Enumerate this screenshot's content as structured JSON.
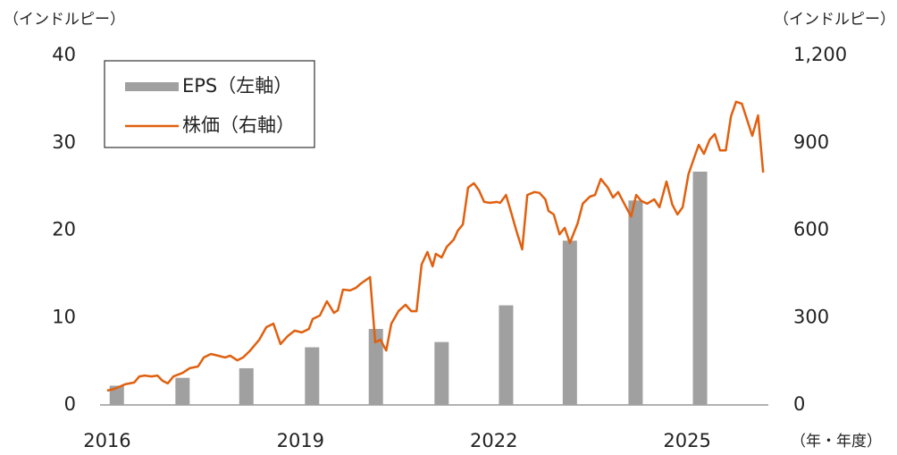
{
  "chart_data": {
    "type": "bar-line",
    "y_unit": "（インドルピー）",
    "y2_unit": "（インドルピー）",
    "x_unit": "（年・年度）",
    "xlim": [
      2015.89,
      2026.26
    ],
    "xticks": [
      2016,
      2019,
      2022,
      2025
    ],
    "ylim": [
      0,
      40
    ],
    "yticks": [
      0,
      10,
      20,
      30,
      40
    ],
    "y2lim": [
      0,
      1200
    ],
    "y2ticks": [
      0,
      300,
      600,
      900,
      {
        "value": 1200,
        "label": "1,200"
      }
    ],
    "legend": "upper left",
    "series": [
      {
        "name": "EPS（左軸）",
        "type": "bar",
        "axis": "y",
        "color": "#a0a0a0",
        "x": [
          2016.15,
          2017.17,
          2018.16,
          2019.18,
          2020.17,
          2021.19,
          2022.19,
          2023.18,
          2024.2,
          2025.2
        ],
        "values": [
          2.2,
          3.1,
          4.2,
          6.6,
          8.7,
          7.2,
          11.4,
          18.8,
          23.4,
          26.7
        ]
      },
      {
        "name": "株価（右軸）",
        "type": "line",
        "axis": "y2",
        "color": "#e0600f",
        "x": [
          2016,
          2016.11,
          2016.28,
          2016.42,
          2016.5,
          2016.58,
          2016.69,
          2016.78,
          2016.86,
          2016.94,
          2017.03,
          2017.17,
          2017.28,
          2017.41,
          2017.5,
          2017.61,
          2017.72,
          2017.83,
          2017.91,
          2018.02,
          2018.11,
          2018.22,
          2018.36,
          2018.47,
          2018.58,
          2018.69,
          2018.8,
          2018.91,
          2019.02,
          2019.13,
          2019.19,
          2019.3,
          2019.41,
          2019.52,
          2019.58,
          2019.66,
          2019.77,
          2019.86,
          2019.94,
          2020.08,
          2020.16,
          2020.24,
          2020.33,
          2020.41,
          2020.52,
          2020.63,
          2020.72,
          2020.8,
          2020.88,
          2020.97,
          2021.05,
          2021.1,
          2021.19,
          2021.27,
          2021.38,
          2021.44,
          2021.52,
          2021.6,
          2021.69,
          2021.77,
          2021.85,
          2021.94,
          2022.05,
          2022.1,
          2022.19,
          2022.27,
          2022.35,
          2022.44,
          2022.52,
          2022.63,
          2022.71,
          2022.8,
          2022.85,
          2022.93,
          2023.02,
          2023.1,
          2023.18,
          2023.3,
          2023.38,
          2023.49,
          2023.57,
          2023.66,
          2023.77,
          2023.85,
          2023.93,
          2024.04,
          2024.13,
          2024.21,
          2024.29,
          2024.38,
          2024.49,
          2024.57,
          2024.68,
          2024.77,
          2024.85,
          2024.93,
          2025.02,
          2025.13,
          2025.18,
          2025.26,
          2025.35,
          2025.43,
          2025.51,
          2025.6,
          2025.68,
          2025.76,
          2025.85,
          2025.93,
          2026.01,
          2026.1,
          2026.18
        ],
        "values": [
          49,
          55,
          71,
          77,
          98,
          101,
          98,
          101,
          83,
          74,
          98,
          110,
          126,
          132,
          163,
          175,
          169,
          163,
          169,
          153,
          163,
          187,
          224,
          267,
          279,
          209,
          236,
          255,
          249,
          261,
          295,
          307,
          356,
          316,
          325,
          396,
          393,
          402,
          417,
          439,
          215,
          224,
          187,
          279,
          322,
          344,
          322,
          322,
          482,
          525,
          476,
          519,
          506,
          543,
          568,
          598,
          620,
          746,
          761,
          737,
          697,
          694,
          697,
          694,
          721,
          660,
          598,
          534,
          721,
          731,
          728,
          706,
          666,
          654,
          586,
          608,
          556,
          623,
          691,
          715,
          721,
          776,
          746,
          712,
          731,
          684,
          647,
          721,
          700,
          691,
          706,
          679,
          767,
          688,
          654,
          679,
          792,
          862,
          893,
          862,
          911,
          930,
          874,
          874,
          991,
          1041,
          1034,
          979,
          924,
          994,
          798
        ]
      }
    ]
  }
}
